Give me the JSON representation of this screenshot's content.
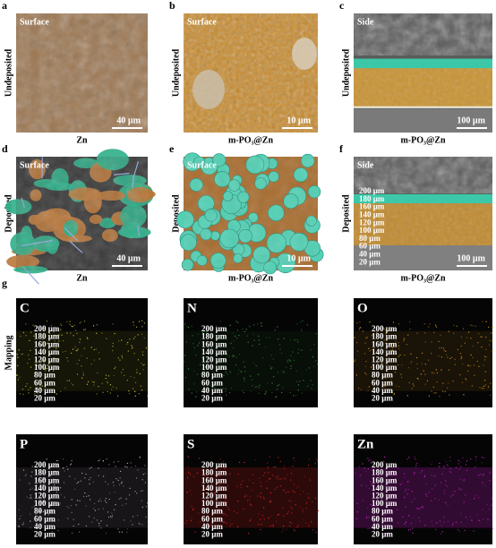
{
  "panels": [
    {
      "letter": "a",
      "tag": "Surface",
      "row_label": "Undeposited",
      "scale": "40 µm",
      "caption": "Zn"
    },
    {
      "letter": "b",
      "tag": "Surface",
      "row_label": "Undeposited",
      "scale": "10 µm",
      "caption": "m-PO₃@Zn"
    },
    {
      "letter": "c",
      "tag": "Side",
      "row_label": "Undeposited",
      "scale": "100 µm",
      "caption": "m-PO₃@Zn"
    },
    {
      "letter": "d",
      "tag": "Surface",
      "row_label": "Deposited",
      "scale": "40 µm",
      "caption": "Zn"
    },
    {
      "letter": "e",
      "tag": "Surface",
      "row_label": "Deposited",
      "scale": "10 µm",
      "caption": "m-PO₃@Zn"
    },
    {
      "letter": "f",
      "tag": "Side",
      "row_label": "Deposited",
      "scale": "100 µm",
      "caption": "m-PO₃@Zn"
    }
  ],
  "mapping": {
    "letter": "g",
    "row_label": "Mapping",
    "elements": [
      "C",
      "N",
      "O",
      "P",
      "S",
      "Zn"
    ]
  },
  "depth_labels": [
    "200 µm",
    "180 µm",
    "160 µm",
    "140 µm",
    "120 µm",
    "100 µm",
    "80 µm",
    "60 µm",
    "40 µm",
    "20 µm"
  ]
}
